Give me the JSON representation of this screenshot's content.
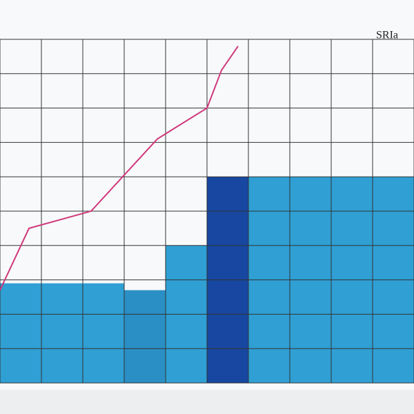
{
  "chart_data": {
    "type": "bar",
    "annotation": "SRIa",
    "categories": [
      null,
      null,
      null,
      null,
      null,
      null,
      null,
      null,
      null,
      null
    ],
    "values": [
      29,
      29,
      29,
      27,
      40,
      60,
      60,
      60,
      60,
      60
    ],
    "colors": [
      "#2f9fd4",
      "#2f9fd4",
      "#2f9fd4",
      "#2a8fc4",
      "#2f9fd4",
      "#1747a0",
      "#2f9fd4",
      "#2f9fd4",
      "#2f9fd4",
      "#2f9fd4"
    ],
    "line": {
      "color": "#d0387a",
      "x": [
        0,
        0.7,
        2.2,
        3.8,
        5,
        5.35,
        5.75
      ],
      "values": [
        27,
        45,
        50,
        71,
        80,
        91,
        98
      ]
    },
    "xlim": [
      0,
      10
    ],
    "xticks": [
      0,
      1,
      2,
      3,
      4,
      5,
      6,
      7,
      8,
      9,
      10
    ],
    "ylim": [
      0,
      100
    ],
    "yticks": [
      0,
      10,
      20,
      30,
      40,
      50,
      60,
      70,
      80,
      90,
      100
    ],
    "grid": true
  }
}
